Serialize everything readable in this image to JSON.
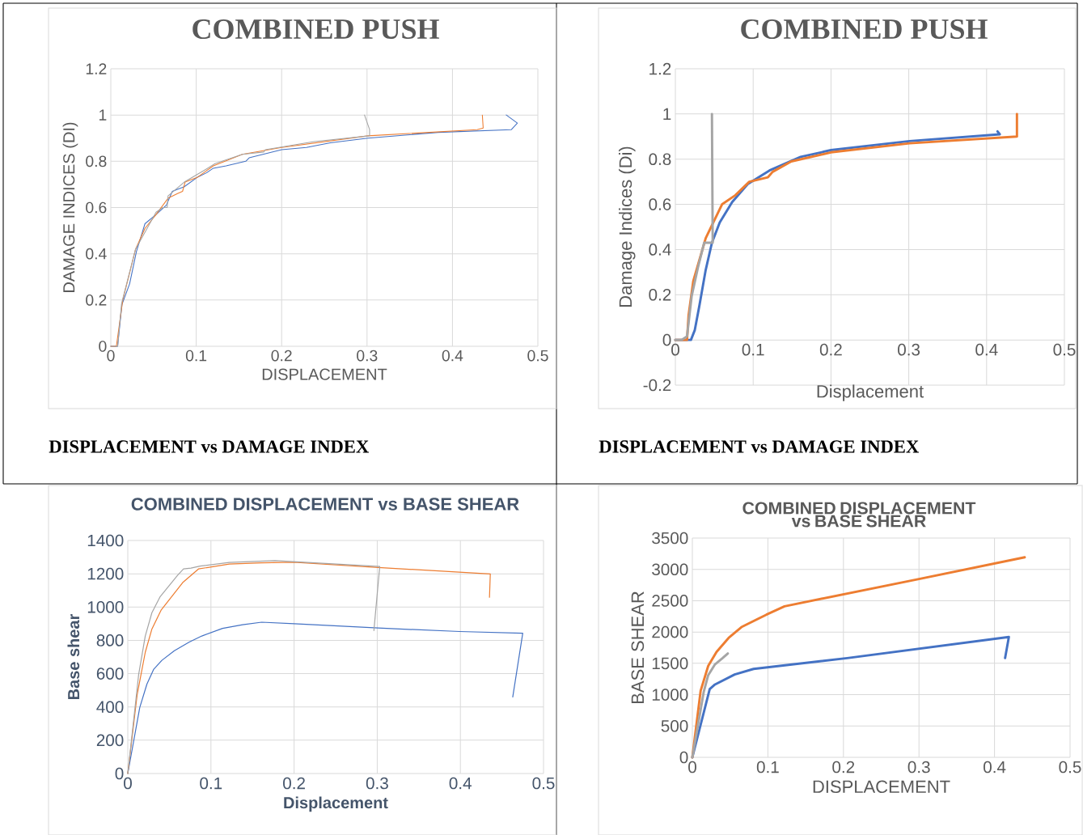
{
  "chart_data": [
    {
      "type": "line",
      "title": "COMBINED PUSH",
      "xlabel": "DISPLACEMENT",
      "ylabel": "DAMAGE INDICES (DI)",
      "xlim": [
        0,
        0.5
      ],
      "ylim": [
        0,
        1.2
      ],
      "xticks": [
        0,
        0.1,
        0.2,
        0.3,
        0.4,
        0.5
      ],
      "yticks": [
        0,
        0.2,
        0.4,
        0.6,
        0.8,
        1,
        1.2
      ],
      "grid": true,
      "annotations": [
        "DISPLACEMENT vs DAMAGE INDEX"
      ],
      "series": [
        {
          "color": "#4472c4",
          "x": [
            0,
            0.008,
            0.013,
            0.022,
            0.03,
            0.04,
            0.053,
            0.065,
            0.072,
            0.086,
            0.101,
            0.112,
            0.12,
            0.135,
            0.158,
            0.162,
            0.2,
            0.229,
            0.257,
            0.301,
            0.383,
            0.469,
            0.476,
            0.463
          ],
          "values": [
            0,
            0,
            0.18,
            0.27,
            0.41,
            0.53,
            0.57,
            0.61,
            0.67,
            0.69,
            0.73,
            0.75,
            0.77,
            0.78,
            0.8,
            0.815,
            0.85,
            0.86,
            0.88,
            0.9,
            0.925,
            0.937,
            0.965,
            1
          ]
        },
        {
          "color": "#ed7d31",
          "x": [
            0,
            0.0065,
            0.014,
            0.029,
            0.04,
            0.053,
            0.067,
            0.078,
            0.084,
            0.087,
            0.101,
            0.12,
            0.154,
            0.2,
            0.301,
            0.429,
            0.436,
            0.435
          ],
          "values": [
            0,
            0,
            0.2,
            0.42,
            0.51,
            0.57,
            0.64,
            0.66,
            0.67,
            0.71,
            0.73,
            0.78,
            0.83,
            0.86,
            0.91,
            0.937,
            0.944,
            1
          ]
        },
        {
          "color": "#a5a5a5",
          "x": [
            0,
            0.008,
            0.0126,
            0.029,
            0.053,
            0.061,
            0.066,
            0.067,
            0.086,
            0.109,
            0.122,
            0.154,
            0.179,
            0.181,
            0.238,
            0.303,
            0.303,
            0.297
          ],
          "values": [
            0,
            0,
            0.185,
            0.42,
            0.58,
            0.6,
            0.6,
            0.65,
            0.71,
            0.76,
            0.79,
            0.83,
            0.84,
            0.85,
            0.885,
            0.91,
            0.937,
            1
          ]
        }
      ]
    },
    {
      "type": "line",
      "title": "COMBINED PUSH",
      "xlabel": "Displacement",
      "ylabel": "Damage Indices (Di)",
      "xlim": [
        0,
        0.5
      ],
      "ylim": [
        -0.2,
        1.2
      ],
      "xticks": [
        0,
        0.1,
        0.2,
        0.3,
        0.4,
        0.5
      ],
      "yticks": [
        -0.2,
        0,
        0.2,
        0.4,
        0.6,
        0.8,
        1,
        1.2
      ],
      "grid": true,
      "annotations": [
        "DISPLACEMENT vs DAMAGE INDEX"
      ],
      "series": [
        {
          "color": "#4472c4",
          "x": [
            0,
            0.02,
            0.025,
            0.031,
            0.039,
            0.047,
            0.057,
            0.073,
            0.093,
            0.121,
            0.161,
            0.2,
            0.301,
            0.417,
            0.414
          ],
          "values": [
            0,
            0,
            0.044,
            0.154,
            0.31,
            0.43,
            0.52,
            0.61,
            0.69,
            0.75,
            0.81,
            0.84,
            0.88,
            0.91,
            0.923
          ]
        },
        {
          "color": "#ed7d31",
          "x": [
            0,
            0.015,
            0.017,
            0.023,
            0.039,
            0.06,
            0.077,
            0.095,
            0.119,
            0.125,
            0.149,
            0.2,
            0.301,
            0.439,
            0.439
          ],
          "values": [
            0,
            0,
            0.11,
            0.26,
            0.45,
            0.6,
            0.64,
            0.7,
            0.72,
            0.744,
            0.79,
            0.83,
            0.87,
            0.9,
            1
          ]
        },
        {
          "color": "#a5a5a5",
          "x": [
            0,
            0.008,
            0.015,
            0.021,
            0.029,
            0.037,
            0.048,
            0.047
          ],
          "values": [
            0,
            0,
            0.016,
            0.195,
            0.32,
            0.43,
            0.43,
            1
          ]
        }
      ]
    },
    {
      "type": "line",
      "title": "COMBINED DISPLACEMENT vs BASE SHEAR",
      "xlabel": "Displacement",
      "ylabel": "Base shear",
      "xlim": [
        0,
        0.5
      ],
      "ylim": [
        0,
        1400
      ],
      "xticks": [
        0,
        0.1,
        0.2,
        0.3,
        0.4,
        0.5
      ],
      "yticks": [
        0,
        200,
        400,
        600,
        800,
        1000,
        1200,
        1400
      ],
      "grid": true,
      "series": [
        {
          "color": "#4472c4",
          "x": [
            0,
            0.0144,
            0.023,
            0.031,
            0.041,
            0.056,
            0.074,
            0.089,
            0.114,
            0.138,
            0.161,
            0.2,
            0.301,
            0.399,
            0.475,
            0.463
          ],
          "values": [
            0,
            397,
            537,
            625,
            680,
            738,
            790,
            826,
            872,
            894,
            909,
            900,
            874,
            853,
            843,
            460
          ]
        },
        {
          "color": "#ed7d31",
          "x": [
            0,
            0.0113,
            0.021,
            0.029,
            0.04,
            0.066,
            0.085,
            0.122,
            0.161,
            0.2,
            0.301,
            0.436,
            0.435
          ],
          "values": [
            0,
            475,
            728,
            868,
            981,
            1147,
            1229,
            1258,
            1266,
            1269,
            1238,
            1199,
            1059
          ]
        },
        {
          "color": "#a5a5a5",
          "x": [
            0,
            0.013,
            0.021,
            0.029,
            0.039,
            0.06,
            0.067,
            0.076,
            0.087,
            0.122,
            0.177,
            0.303,
            0.296
          ],
          "values": [
            0,
            592,
            826,
            966,
            1063,
            1192,
            1229,
            1234,
            1246,
            1268,
            1279,
            1244,
            859
          ]
        }
      ]
    },
    {
      "type": "line",
      "title": "COMBINED DISPLACEMENT vs BASE SHEAR",
      "xlabel": "DISPLACEMENT",
      "ylabel": "BASE SHEAR",
      "xlim": [
        0,
        0.5
      ],
      "ylim": [
        0,
        3500
      ],
      "xticks": [
        0,
        0.1,
        0.2,
        0.3,
        0.4,
        0.5
      ],
      "yticks": [
        0,
        500,
        1000,
        1500,
        2000,
        2500,
        3000,
        3500
      ],
      "grid": true,
      "series": [
        {
          "color": "#4472c4",
          "x": [
            0,
            0.023,
            0.03,
            0.056,
            0.081,
            0.205,
            0.419,
            0.414
          ],
          "values": [
            0,
            1089,
            1163,
            1322,
            1411,
            1584,
            1921,
            1584
          ]
        },
        {
          "color": "#ed7d31",
          "x": [
            0,
            0.011,
            0.021,
            0.032,
            0.048,
            0.065,
            0.098,
            0.122,
            0.3,
            0.44
          ],
          "values": [
            0,
            1064,
            1460,
            1683,
            1906,
            2079,
            2277,
            2411,
            2846,
            3193
          ]
        },
        {
          "color": "#a5a5a5",
          "x": [
            0,
            0.015,
            0.021,
            0.03,
            0.04,
            0.047
          ],
          "values": [
            0,
            1040,
            1312,
            1485,
            1584,
            1658
          ]
        }
      ]
    }
  ]
}
